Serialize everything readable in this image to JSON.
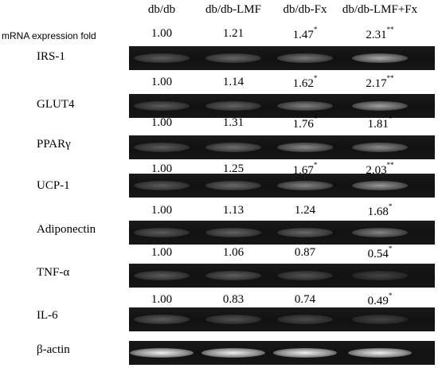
{
  "columns": [
    "db/db",
    "db/db-LMF",
    "db/db-Fx",
    "db/db-LMF+Fx"
  ],
  "axis_label": "mRNA expression fold",
  "rows": [
    {
      "gene": "IRS-1",
      "folds": [
        {
          "v": "1.00",
          "s": ""
        },
        {
          "v": "1.21",
          "s": ""
        },
        {
          "v": "1.47",
          "s": "*"
        },
        {
          "v": "2.31",
          "s": "**"
        }
      ]
    },
    {
      "gene": "GLUT4",
      "folds": [
        {
          "v": "1.00",
          "s": ""
        },
        {
          "v": "1.14",
          "s": ""
        },
        {
          "v": "1.62",
          "s": "*"
        },
        {
          "v": "2.17",
          "s": "**"
        }
      ]
    },
    {
      "gene": "PPARγ",
      "folds": [
        {
          "v": "1.00",
          "s": ""
        },
        {
          "v": "1.31",
          "s": ""
        },
        {
          "v": "1.76",
          "s": "*"
        },
        {
          "v": "1.81",
          "s": "*"
        }
      ]
    },
    {
      "gene": "UCP-1",
      "folds": [
        {
          "v": "1.00",
          "s": ""
        },
        {
          "v": "1.25",
          "s": ""
        },
        {
          "v": "1.67",
          "s": "*"
        },
        {
          "v": "2.03",
          "s": "**"
        }
      ]
    },
    {
      "gene": "Adiponectin",
      "folds": [
        {
          "v": "1.00",
          "s": ""
        },
        {
          "v": "1.13",
          "s": ""
        },
        {
          "v": "1.24",
          "s": ""
        },
        {
          "v": "1.68",
          "s": "*"
        }
      ]
    },
    {
      "gene": "TNF-α",
      "folds": [
        {
          "v": "1.00",
          "s": ""
        },
        {
          "v": "1.06",
          "s": ""
        },
        {
          "v": "0.87",
          "s": ""
        },
        {
          "v": "0.54",
          "s": "*"
        }
      ]
    },
    {
      "gene": "IL-6",
      "folds": [
        {
          "v": "1.00",
          "s": ""
        },
        {
          "v": "0.83",
          "s": ""
        },
        {
          "v": "0.74",
          "s": ""
        },
        {
          "v": "0.49",
          "s": "*"
        }
      ]
    }
  ],
  "loading_control": "β-actin",
  "colors": {
    "gel": "#141414",
    "band": "#e8e8e8"
  }
}
